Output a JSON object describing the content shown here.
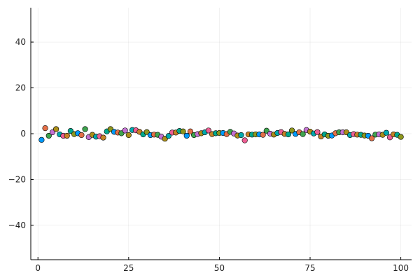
{
  "chart_data": {
    "type": "scatter",
    "title": "",
    "xlabel": "",
    "ylabel": "",
    "xlim": [
      -1.97,
      102.97
    ],
    "ylim": [
      -55,
      55
    ],
    "grid": true,
    "legend": "none",
    "x_ticks": [
      0,
      25,
      50,
      75,
      100
    ],
    "x_tick_labels": [
      "0",
      "25",
      "50",
      "75",
      "100"
    ],
    "y_ticks": [
      -40,
      -20,
      0,
      20,
      40
    ],
    "y_tick_labels": [
      "−40",
      "−20",
      "0",
      "20",
      "40"
    ],
    "palette": [
      "#009AFA",
      "#E36F47",
      "#3EA44E",
      "#C371D2",
      "#AC8E18",
      "#00A9AD",
      "#ED5E93",
      "#C68225",
      "#00A98D",
      "#8E971D"
    ],
    "x": [
      1,
      2,
      3,
      4,
      5,
      6,
      7,
      8,
      9,
      10,
      11,
      12,
      13,
      14,
      15,
      16,
      17,
      18,
      19,
      20,
      21,
      22,
      23,
      24,
      25,
      26,
      27,
      28,
      29,
      30,
      31,
      32,
      33,
      34,
      35,
      36,
      37,
      38,
      39,
      40,
      41,
      42,
      43,
      44,
      45,
      46,
      47,
      48,
      49,
      50,
      51,
      52,
      53,
      54,
      55,
      56,
      57,
      58,
      59,
      60,
      61,
      62,
      63,
      64,
      65,
      66,
      67,
      68,
      69,
      70,
      71,
      72,
      73,
      74,
      75,
      76,
      77,
      78,
      79,
      80,
      81,
      82,
      83,
      84,
      85,
      86,
      87,
      88,
      89,
      90,
      91,
      92,
      93,
      94,
      95,
      96,
      97,
      98,
      99,
      100
    ],
    "y": [
      -2.7,
      2.4,
      -0.9,
      0.6,
      2.0,
      -0.3,
      -0.9,
      -0.9,
      1.2,
      -0.2,
      0.2,
      -0.6,
      2.0,
      -1.5,
      -0.5,
      -1.3,
      -1.1,
      -1.7,
      1.0,
      2.0,
      0.8,
      0.5,
      0.2,
      1.4,
      -0.6,
      1.6,
      1.5,
      0.8,
      -0.3,
      0.7,
      -0.6,
      -0.4,
      -0.5,
      -1.3,
      -2.2,
      -1.0,
      0.5,
      0.5,
      1.2,
      1.0,
      -0.9,
      1.0,
      -0.6,
      -0.2,
      0.2,
      0.6,
      1.4,
      -0.2,
      0.2,
      0.3,
      0.3,
      -0.2,
      0.8,
      0.1,
      -0.8,
      -0.6,
      -2.9,
      -0.3,
      -0.4,
      -0.3,
      -0.3,
      -0.5,
      1.3,
      0.0,
      -0.4,
      0.3,
      0.7,
      -0.1,
      -0.3,
      1.4,
      -0.1,
      0.6,
      -0.2,
      1.6,
      0.9,
      0.1,
      0.7,
      -1.2,
      -0.3,
      -0.9,
      -0.8,
      0.2,
      0.6,
      0.6,
      0.6,
      -0.6,
      -0.2,
      -0.4,
      -0.5,
      -0.8,
      -0.9,
      -2.0,
      -0.4,
      -0.3,
      -0.5,
      0.4,
      -1.6,
      -0.3,
      -0.5,
      -1.4
    ]
  }
}
